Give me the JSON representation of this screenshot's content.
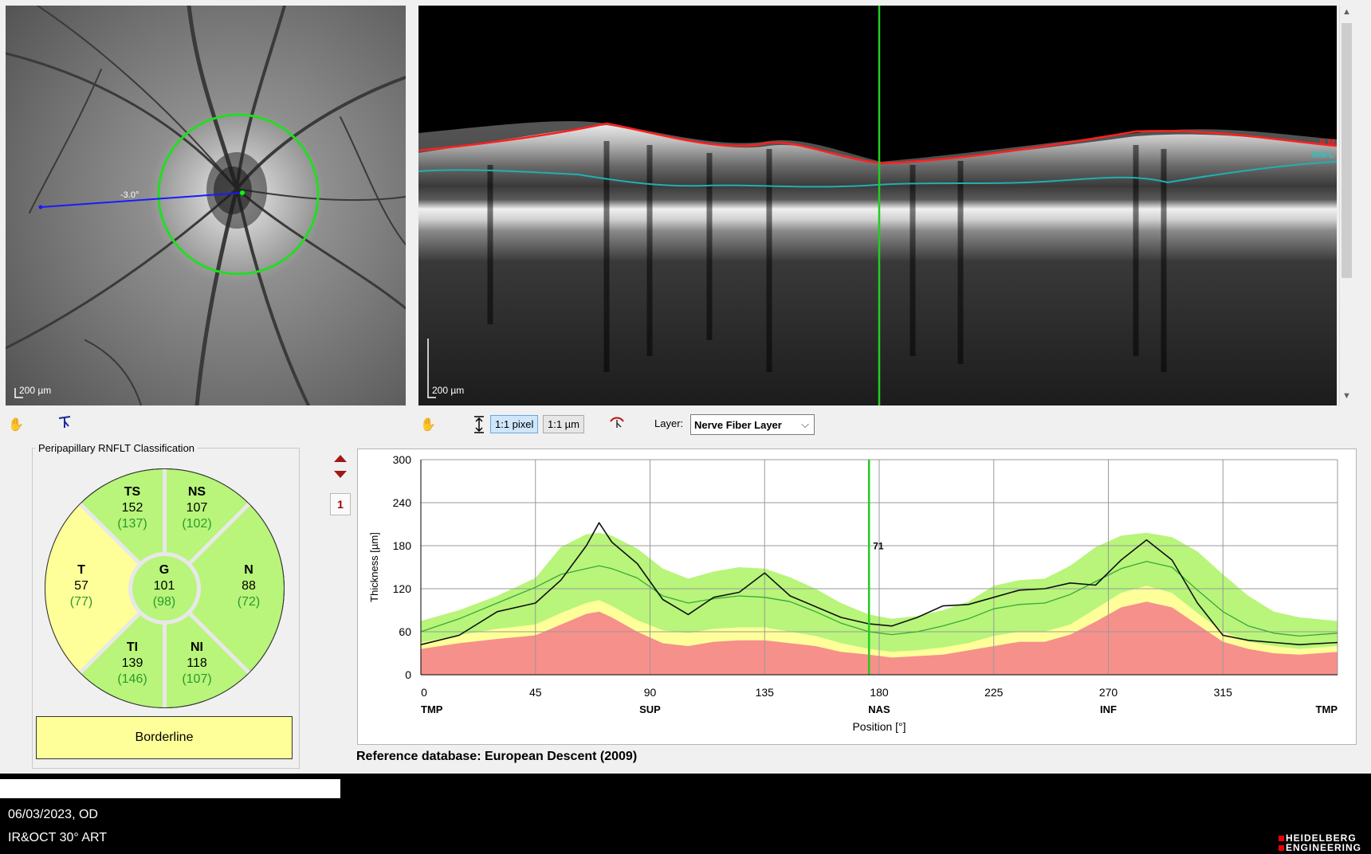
{
  "fundus": {
    "angle_label": "-3.0°",
    "scale_label": "200 µm"
  },
  "oct": {
    "scale_label": "200 µm",
    "ilm_label": "ILM",
    "rnfl_label": "RNFL"
  },
  "toolbar": {
    "pixel_btn": "1:1 pixel",
    "um_btn": "1:1 µm",
    "layer_label": "Layer:",
    "layer_value": "Nerve Fiber Layer"
  },
  "classification": {
    "title": "Peripapillary RNFLT Classification",
    "sectors": {
      "TS": {
        "name": "TS",
        "value": "152",
        "ref": "(137)"
      },
      "NS": {
        "name": "NS",
        "value": "107",
        "ref": "(102)"
      },
      "T": {
        "name": "T",
        "value": "57",
        "ref": "(77)"
      },
      "G": {
        "name": "G",
        "value": "101",
        "ref": "(98)"
      },
      "N": {
        "name": "N",
        "value": "88",
        "ref": "(72)"
      },
      "TI": {
        "name": "TI",
        "value": "139",
        "ref": "(146)"
      },
      "NI": {
        "name": "NI",
        "value": "118",
        "ref": "(107)"
      }
    },
    "result": "Borderline"
  },
  "page_number": "1",
  "reference_db": "Reference database: European Descent (2009)",
  "colors": {
    "normal_green": "#b8f57a",
    "borderline_yellow": "#ffff99",
    "outside_red": "#f6908a",
    "mean_line": "#38a838",
    "cursor": "#22cc22"
  },
  "chart_data": {
    "type": "line",
    "xlabel": "Position [°]",
    "ylabel": "Thickness [µm]",
    "xlim": [
      0,
      360
    ],
    "ylim": [
      0,
      300
    ],
    "xticks": [
      0,
      45,
      90,
      135,
      180,
      225,
      270,
      315
    ],
    "yticks": [
      0,
      60,
      120,
      180,
      240,
      300
    ],
    "sector_labels": [
      {
        "x": 0,
        "label": "TMP"
      },
      {
        "x": 90,
        "label": "SUP"
      },
      {
        "x": 180,
        "label": "NAS"
      },
      {
        "x": 270,
        "label": "INF"
      },
      {
        "x": 360,
        "label": "TMP"
      }
    ],
    "cursor": {
      "x": 176,
      "label": "71"
    },
    "x": [
      0,
      15,
      30,
      45,
      55,
      65,
      70,
      75,
      85,
      95,
      105,
      115,
      125,
      135,
      145,
      155,
      165,
      176,
      185,
      195,
      205,
      215,
      225,
      235,
      245,
      255,
      265,
      275,
      285,
      295,
      305,
      315,
      325,
      335,
      345,
      360
    ],
    "series": [
      {
        "name": "",
        "role": "measured",
        "values": [
          42,
          55,
          88,
          100,
          132,
          180,
          212,
          185,
          155,
          105,
          84,
          108,
          115,
          142,
          110,
          95,
          80,
          71,
          68,
          80,
          96,
          98,
          108,
          118,
          120,
          128,
          125,
          160,
          188,
          160,
          100,
          55,
          48,
          45,
          42,
          45
        ]
      },
      {
        "name": "",
        "role": "mean",
        "values": [
          60,
          78,
          100,
          122,
          140,
          148,
          152,
          148,
          135,
          110,
          100,
          106,
          110,
          108,
          102,
          88,
          72,
          60,
          56,
          60,
          68,
          78,
          92,
          98,
          100,
          112,
          130,
          148,
          158,
          150,
          118,
          88,
          68,
          58,
          54,
          58
        ]
      },
      {
        "name": "",
        "role": "p95_upper",
        "values": [
          75,
          90,
          110,
          135,
          178,
          196,
          198,
          194,
          176,
          148,
          134,
          144,
          150,
          148,
          136,
          120,
          100,
          84,
          78,
          82,
          90,
          102,
          124,
          132,
          134,
          152,
          178,
          194,
          198,
          192,
          172,
          140,
          110,
          88,
          80,
          75
        ]
      },
      {
        "name": "",
        "role": "p5_lower",
        "values": [
          45,
          55,
          64,
          70,
          86,
          100,
          104,
          96,
          76,
          62,
          58,
          64,
          66,
          66,
          60,
          54,
          44,
          36,
          32,
          34,
          38,
          44,
          54,
          60,
          60,
          70,
          92,
          114,
          124,
          114,
          86,
          60,
          46,
          40,
          36,
          40
        ]
      },
      {
        "name": "",
        "role": "p1_lower",
        "values": [
          36,
          44,
          50,
          55,
          70,
          85,
          88,
          80,
          60,
          44,
          40,
          46,
          48,
          48,
          44,
          40,
          32,
          28,
          24,
          26,
          28,
          34,
          40,
          46,
          46,
          56,
          74,
          94,
          102,
          94,
          70,
          46,
          36,
          30,
          28,
          32
        ]
      }
    ]
  }
}
